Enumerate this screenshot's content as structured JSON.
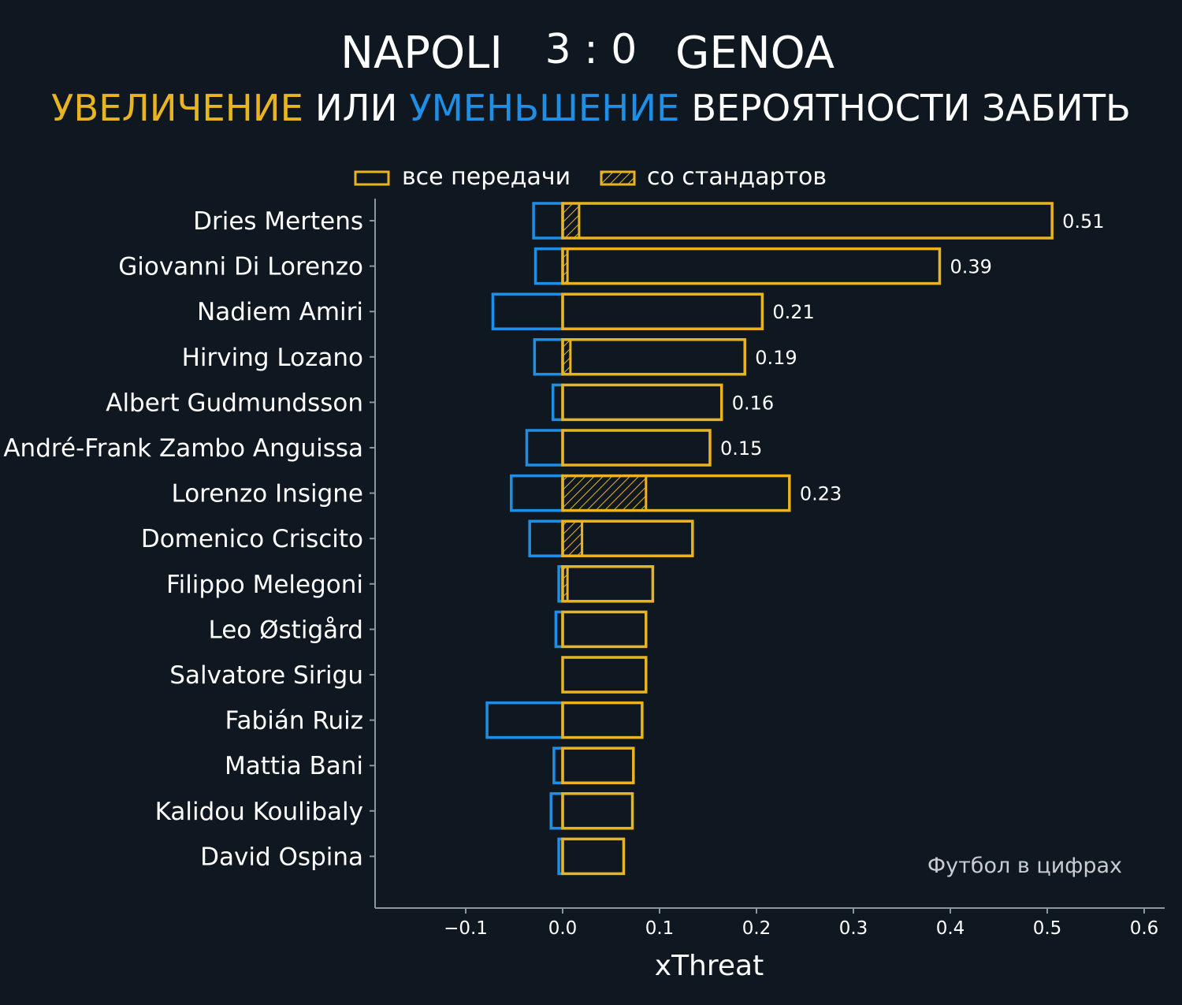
{
  "header": {
    "home_team": "NAPOLI",
    "score": "3 : 0",
    "away_team": "GENOA",
    "subtitle_part1": "УВЕЛИЧЕНИЕ",
    "subtitle_part2": " ИЛИ ",
    "subtitle_part3": "УМЕНЬШЕНИЕ",
    "subtitle_part4": " ВЕРОЯТНОСТИ ЗАБИТЬ"
  },
  "legend": {
    "all_passes": "все передачи",
    "set_pieces": "со стандартов"
  },
  "watermark": "Футбол в цифрах",
  "colors": {
    "background": "#0f1820",
    "increase": "#e8b422",
    "decrease": "#1f8fe6",
    "text": "#ffffff",
    "axis": "#8a96a0"
  },
  "chart_data": {
    "type": "bar",
    "orientation": "horizontal",
    "xlabel": "xThreat",
    "xlim": [
      -0.195,
      0.62
    ],
    "xticks": [
      -0.1,
      0.0,
      0.1,
      0.2,
      0.3,
      0.4,
      0.5,
      0.6
    ],
    "xtick_labels": [
      "−0.1",
      "0.0",
      "0.1",
      "0.2",
      "0.3",
      "0.4",
      "0.5",
      "0.6"
    ],
    "grid": false,
    "legend_position": "top-center",
    "categories": [
      "Dries Mertens",
      "Giovanni Di Lorenzo",
      "Nadiem Amiri",
      "Hirving Lozano",
      "Albert Gudmundsson",
      "André-Frank Zambo Anguissa",
      "Lorenzo Insigne",
      "Domenico Criscito",
      "Filippo Melegoni",
      "Leo Østigård",
      "Salvatore Sirigu",
      "Fabián Ruiz",
      "Mattia Bani",
      "Kalidou Koulibaly",
      "David Ospina"
    ],
    "series": [
      {
        "name": "все передачи (положительное)",
        "values": [
          0.505,
          0.389,
          0.206,
          0.188,
          0.164,
          0.152,
          0.234,
          0.134,
          0.093,
          0.086,
          0.086,
          0.082,
          0.073,
          0.072,
          0.063
        ]
      },
      {
        "name": "все передачи (отрицательное)",
        "values": [
          -0.03,
          -0.028,
          -0.072,
          -0.029,
          -0.01,
          -0.037,
          -0.053,
          -0.034,
          -0.004,
          -0.007,
          0,
          -0.078,
          -0.009,
          -0.012,
          -0.004
        ]
      },
      {
        "name": "со стандартов",
        "values": [
          0.017,
          0.005,
          0,
          0.008,
          0,
          0,
          0.086,
          0.02,
          0.005,
          0,
          0,
          0,
          0,
          0,
          0
        ]
      }
    ],
    "data_labels": [
      "0.51",
      "0.39",
      "0.21",
      "0.19",
      "0.16",
      "0.15",
      "0.23",
      "",
      "",
      "",
      "",
      "",
      "",
      "",
      ""
    ]
  }
}
